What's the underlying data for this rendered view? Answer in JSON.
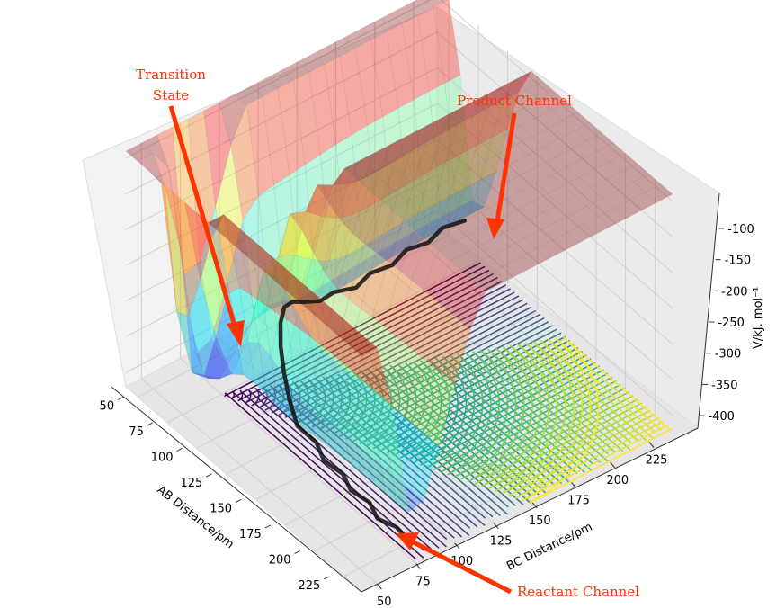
{
  "chart_data": {
    "type": "surface3d",
    "title": "",
    "xlabel": "AB Distance/pm",
    "ylabel": "BC Distance/pm",
    "zlabel": "V/kJ. mol⁻¹",
    "x_ticks": [
      50,
      75,
      100,
      125,
      150,
      175,
      200,
      225
    ],
    "y_ticks": [
      50,
      75,
      100,
      125,
      150,
      175,
      200,
      225
    ],
    "z_ticks": [
      -100,
      -150,
      -200,
      -250,
      -300,
      -350,
      -400
    ],
    "xlim": [
      40,
      240
    ],
    "ylim": [
      40,
      240
    ],
    "zlim": [
      -420,
      -90
    ],
    "surface_colormap": "jet",
    "contour_colormap": "viridis",
    "trajectory_color": "#111111",
    "annotation_color": "#ff3300",
    "annotations": [
      {
        "label_lines": [
          "Transition",
          "State"
        ],
        "text": "Transition State"
      },
      {
        "label_lines": [
          "Product Channel"
        ],
        "text": "Product Channel"
      },
      {
        "label_lines": [
          "Reactant Channel"
        ],
        "text": "Reactant Channel"
      }
    ],
    "trajectory": {
      "name": "",
      "points": [
        {
          "ab": 234,
          "bc": 74,
          "v": -392
        },
        {
          "ab": 222,
          "bc": 76,
          "v": -396
        },
        {
          "ab": 210,
          "bc": 73,
          "v": -398
        },
        {
          "ab": 198,
          "bc": 77,
          "v": -397
        },
        {
          "ab": 186,
          "bc": 74,
          "v": -394
        },
        {
          "ab": 174,
          "bc": 78,
          "v": -393
        },
        {
          "ab": 162,
          "bc": 75,
          "v": -388
        },
        {
          "ab": 150,
          "bc": 79,
          "v": -384
        },
        {
          "ab": 138,
          "bc": 76,
          "v": -375
        },
        {
          "ab": 126,
          "bc": 80,
          "v": -360
        },
        {
          "ab": 116,
          "bc": 84,
          "v": -340
        },
        {
          "ab": 108,
          "bc": 88,
          "v": -320
        },
        {
          "ab": 100,
          "bc": 94,
          "v": -305
        },
        {
          "ab": 94,
          "bc": 101,
          "v": -300
        },
        {
          "ab": 89,
          "bc": 110,
          "v": -310
        },
        {
          "ab": 84,
          "bc": 121,
          "v": -330
        },
        {
          "ab": 82,
          "bc": 133,
          "v": -345
        },
        {
          "ab": 78,
          "bc": 145,
          "v": -352
        },
        {
          "ab": 81,
          "bc": 157,
          "v": -355
        },
        {
          "ab": 77,
          "bc": 169,
          "v": -354
        },
        {
          "ab": 80,
          "bc": 181,
          "v": -352
        },
        {
          "ab": 76,
          "bc": 193,
          "v": -350
        },
        {
          "ab": 79,
          "bc": 205,
          "v": -349
        },
        {
          "ab": 75,
          "bc": 217,
          "v": -348
        },
        {
          "ab": 78,
          "bc": 229,
          "v": -347
        }
      ]
    }
  }
}
